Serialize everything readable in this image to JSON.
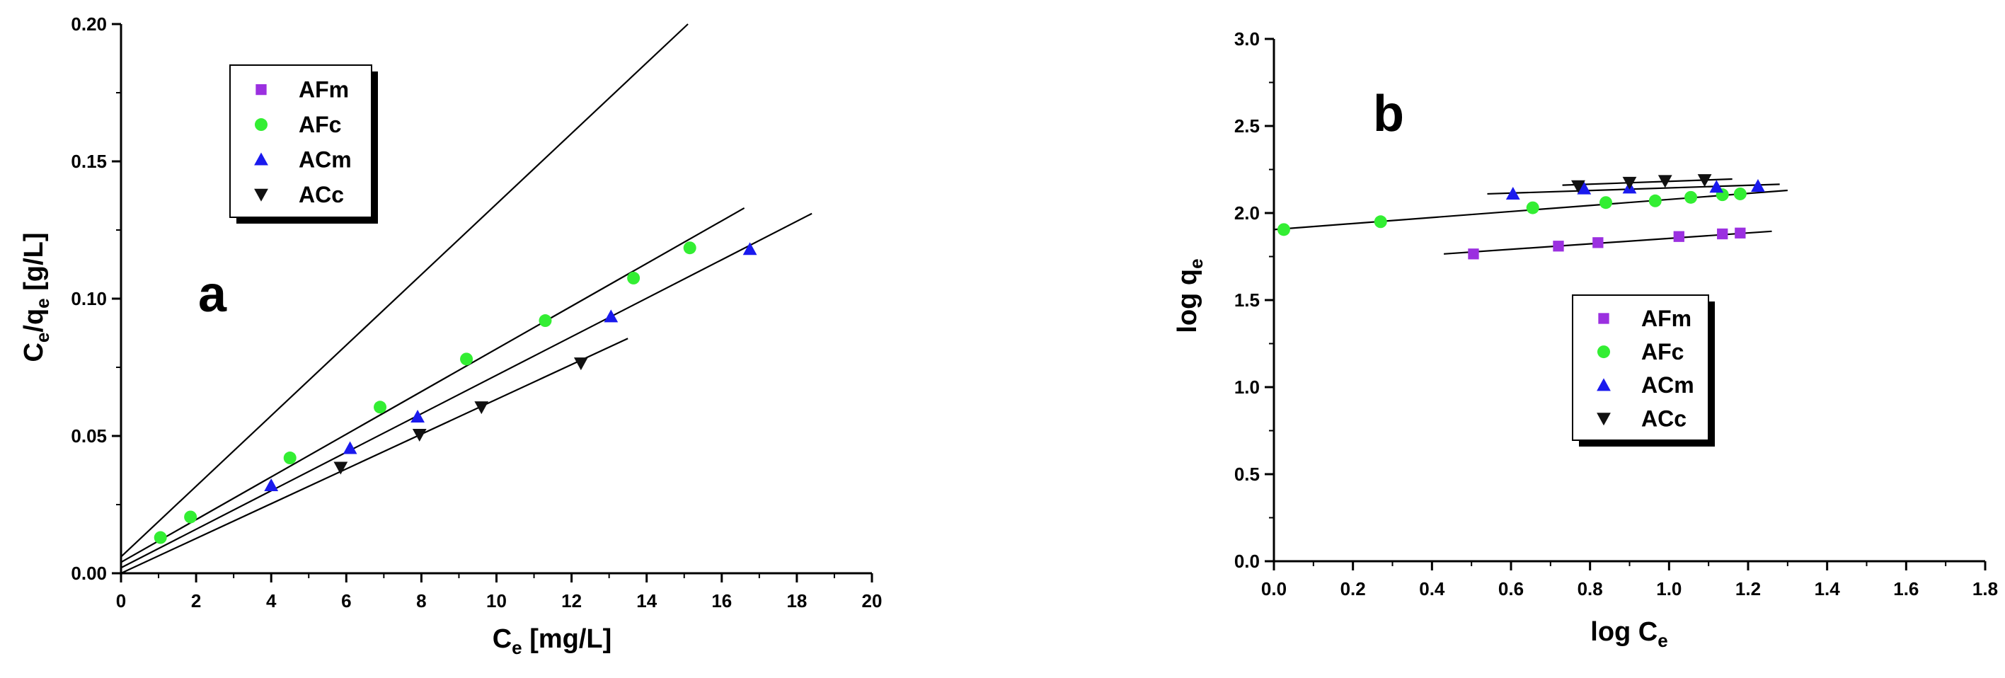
{
  "chart_data": [
    {
      "type": "scatter",
      "panel_label": "a",
      "xlabel": {
        "main": "C",
        "sub": "e",
        "rest": " [mg/L]"
      },
      "ylabel": {
        "parts": [
          {
            "t": "C",
            "sub": false
          },
          {
            "t": "e",
            "sub": true
          },
          {
            "t": "/q",
            "sub": false
          },
          {
            "t": "e",
            "sub": true
          },
          {
            "t": " [g/L]",
            "sub": false
          }
        ]
      },
      "xlim": [
        0,
        20
      ],
      "ylim": [
        0,
        0.2
      ],
      "xticks": [
        "0",
        "2",
        "4",
        "6",
        "8",
        "10",
        "12",
        "14",
        "16",
        "18",
        "20"
      ],
      "xtick_values": [
        0,
        2,
        4,
        6,
        8,
        10,
        12,
        14,
        16,
        18,
        20
      ],
      "yticks": [
        "0.00",
        "0.05",
        "0.10",
        "0.15",
        "0.20"
      ],
      "ytick_values": [
        0,
        0.05,
        0.1,
        0.15,
        0.2
      ],
      "legend_position": "top-left",
      "grid": false,
      "series": [
        {
          "name": "AFm",
          "marker": "square",
          "color": "#9b30e0",
          "points": []
        },
        {
          "name": "AFc",
          "marker": "circle",
          "color": "#33ee33",
          "points": [
            [
              1.05,
              0.013
            ],
            [
              1.85,
              0.0205
            ],
            [
              4.5,
              0.042
            ],
            [
              6.9,
              0.0605
            ],
            [
              9.2,
              0.078
            ],
            [
              11.3,
              0.092
            ],
            [
              13.65,
              0.1075
            ],
            [
              15.15,
              0.1185
            ]
          ]
        },
        {
          "name": "ACm",
          "marker": "triangle-up",
          "color": "#1a1aee",
          "points": [
            [
              4.0,
              0.032
            ],
            [
              6.1,
              0.0455
            ],
            [
              7.9,
              0.057
            ],
            [
              13.05,
              0.0935
            ],
            [
              16.75,
              0.118
            ]
          ]
        },
        {
          "name": "ACc",
          "marker": "triangle-down",
          "color": "#111111",
          "points": [
            [
              5.85,
              0.0385
            ],
            [
              7.95,
              0.0505
            ],
            [
              9.6,
              0.0605
            ],
            [
              12.25,
              0.0765
            ]
          ]
        }
      ],
      "fit_lines": [
        {
          "for": "AFm",
          "from": [
            0,
            0.006
          ],
          "to": [
            15.1,
            0.2
          ]
        },
        {
          "for": "AFc",
          "from": [
            0,
            0.004
          ],
          "to": [
            16.6,
            0.133
          ]
        },
        {
          "for": "ACm",
          "from": [
            0,
            0.002
          ],
          "to": [
            18.4,
            0.131
          ]
        },
        {
          "for": "ACc",
          "from": [
            0,
            0.0
          ],
          "to": [
            13.5,
            0.0855
          ]
        }
      ]
    },
    {
      "type": "scatter",
      "panel_label": "b",
      "xlabel": {
        "main": "log C",
        "sub": "e",
        "rest": ""
      },
      "ylabel": {
        "parts": [
          {
            "t": "log q",
            "sub": false
          },
          {
            "t": "e",
            "sub": true
          }
        ]
      },
      "xlim": [
        0,
        1.8
      ],
      "ylim": [
        0,
        3.0
      ],
      "xticks": [
        "0.0",
        "0.2",
        "0.4",
        "0.6",
        "0.8",
        "1.0",
        "1.2",
        "1.4",
        "1.6",
        "1.8"
      ],
      "xtick_values": [
        0,
        0.2,
        0.4,
        0.6,
        0.8,
        1.0,
        1.2,
        1.4,
        1.6,
        1.8
      ],
      "yticks": [
        "0.0",
        "0.5",
        "1.0",
        "1.5",
        "2.0",
        "2.5",
        "3.0"
      ],
      "ytick_values": [
        0,
        0.5,
        1.0,
        1.5,
        2.0,
        2.5,
        3.0
      ],
      "legend_position": "bottom-center",
      "grid": false,
      "series": [
        {
          "name": "AFm",
          "marker": "square",
          "color": "#9b30e0",
          "points": [
            [
              0.505,
              1.765
            ],
            [
              0.72,
              1.81
            ],
            [
              0.82,
              1.83
            ],
            [
              1.025,
              1.865
            ],
            [
              1.135,
              1.88
            ],
            [
              1.18,
              1.885
            ]
          ]
        },
        {
          "name": "AFc",
          "marker": "circle",
          "color": "#33ee33",
          "points": [
            [
              0.025,
              1.905
            ],
            [
              0.27,
              1.95
            ],
            [
              0.655,
              2.03
            ],
            [
              0.84,
              2.06
            ],
            [
              0.965,
              2.07
            ],
            [
              1.055,
              2.09
            ],
            [
              1.135,
              2.105
            ],
            [
              1.18,
              2.11
            ]
          ]
        },
        {
          "name": "ACm",
          "marker": "triangle-up",
          "color": "#1a1aee",
          "points": [
            [
              0.605,
              2.11
            ],
            [
              0.785,
              2.14
            ],
            [
              0.9,
              2.145
            ],
            [
              1.12,
              2.15
            ],
            [
              1.225,
              2.155
            ]
          ]
        },
        {
          "name": "ACc",
          "marker": "triangle-down",
          "color": "#111111",
          "points": [
            [
              0.77,
              2.155
            ],
            [
              0.9,
              2.175
            ],
            [
              0.99,
              2.185
            ],
            [
              1.09,
              2.19
            ]
          ]
        }
      ],
      "fit_lines": [
        {
          "for": "AFm",
          "from": [
            0.43,
            1.765
          ],
          "to": [
            1.26,
            1.895
          ]
        },
        {
          "for": "AFc",
          "from": [
            0.0,
            1.905
          ],
          "to": [
            1.3,
            2.13
          ]
        },
        {
          "for": "ACm",
          "from": [
            0.54,
            2.11
          ],
          "to": [
            1.28,
            2.165
          ]
        },
        {
          "for": "ACc",
          "from": [
            0.73,
            2.16
          ],
          "to": [
            1.16,
            2.195
          ]
        }
      ]
    }
  ]
}
